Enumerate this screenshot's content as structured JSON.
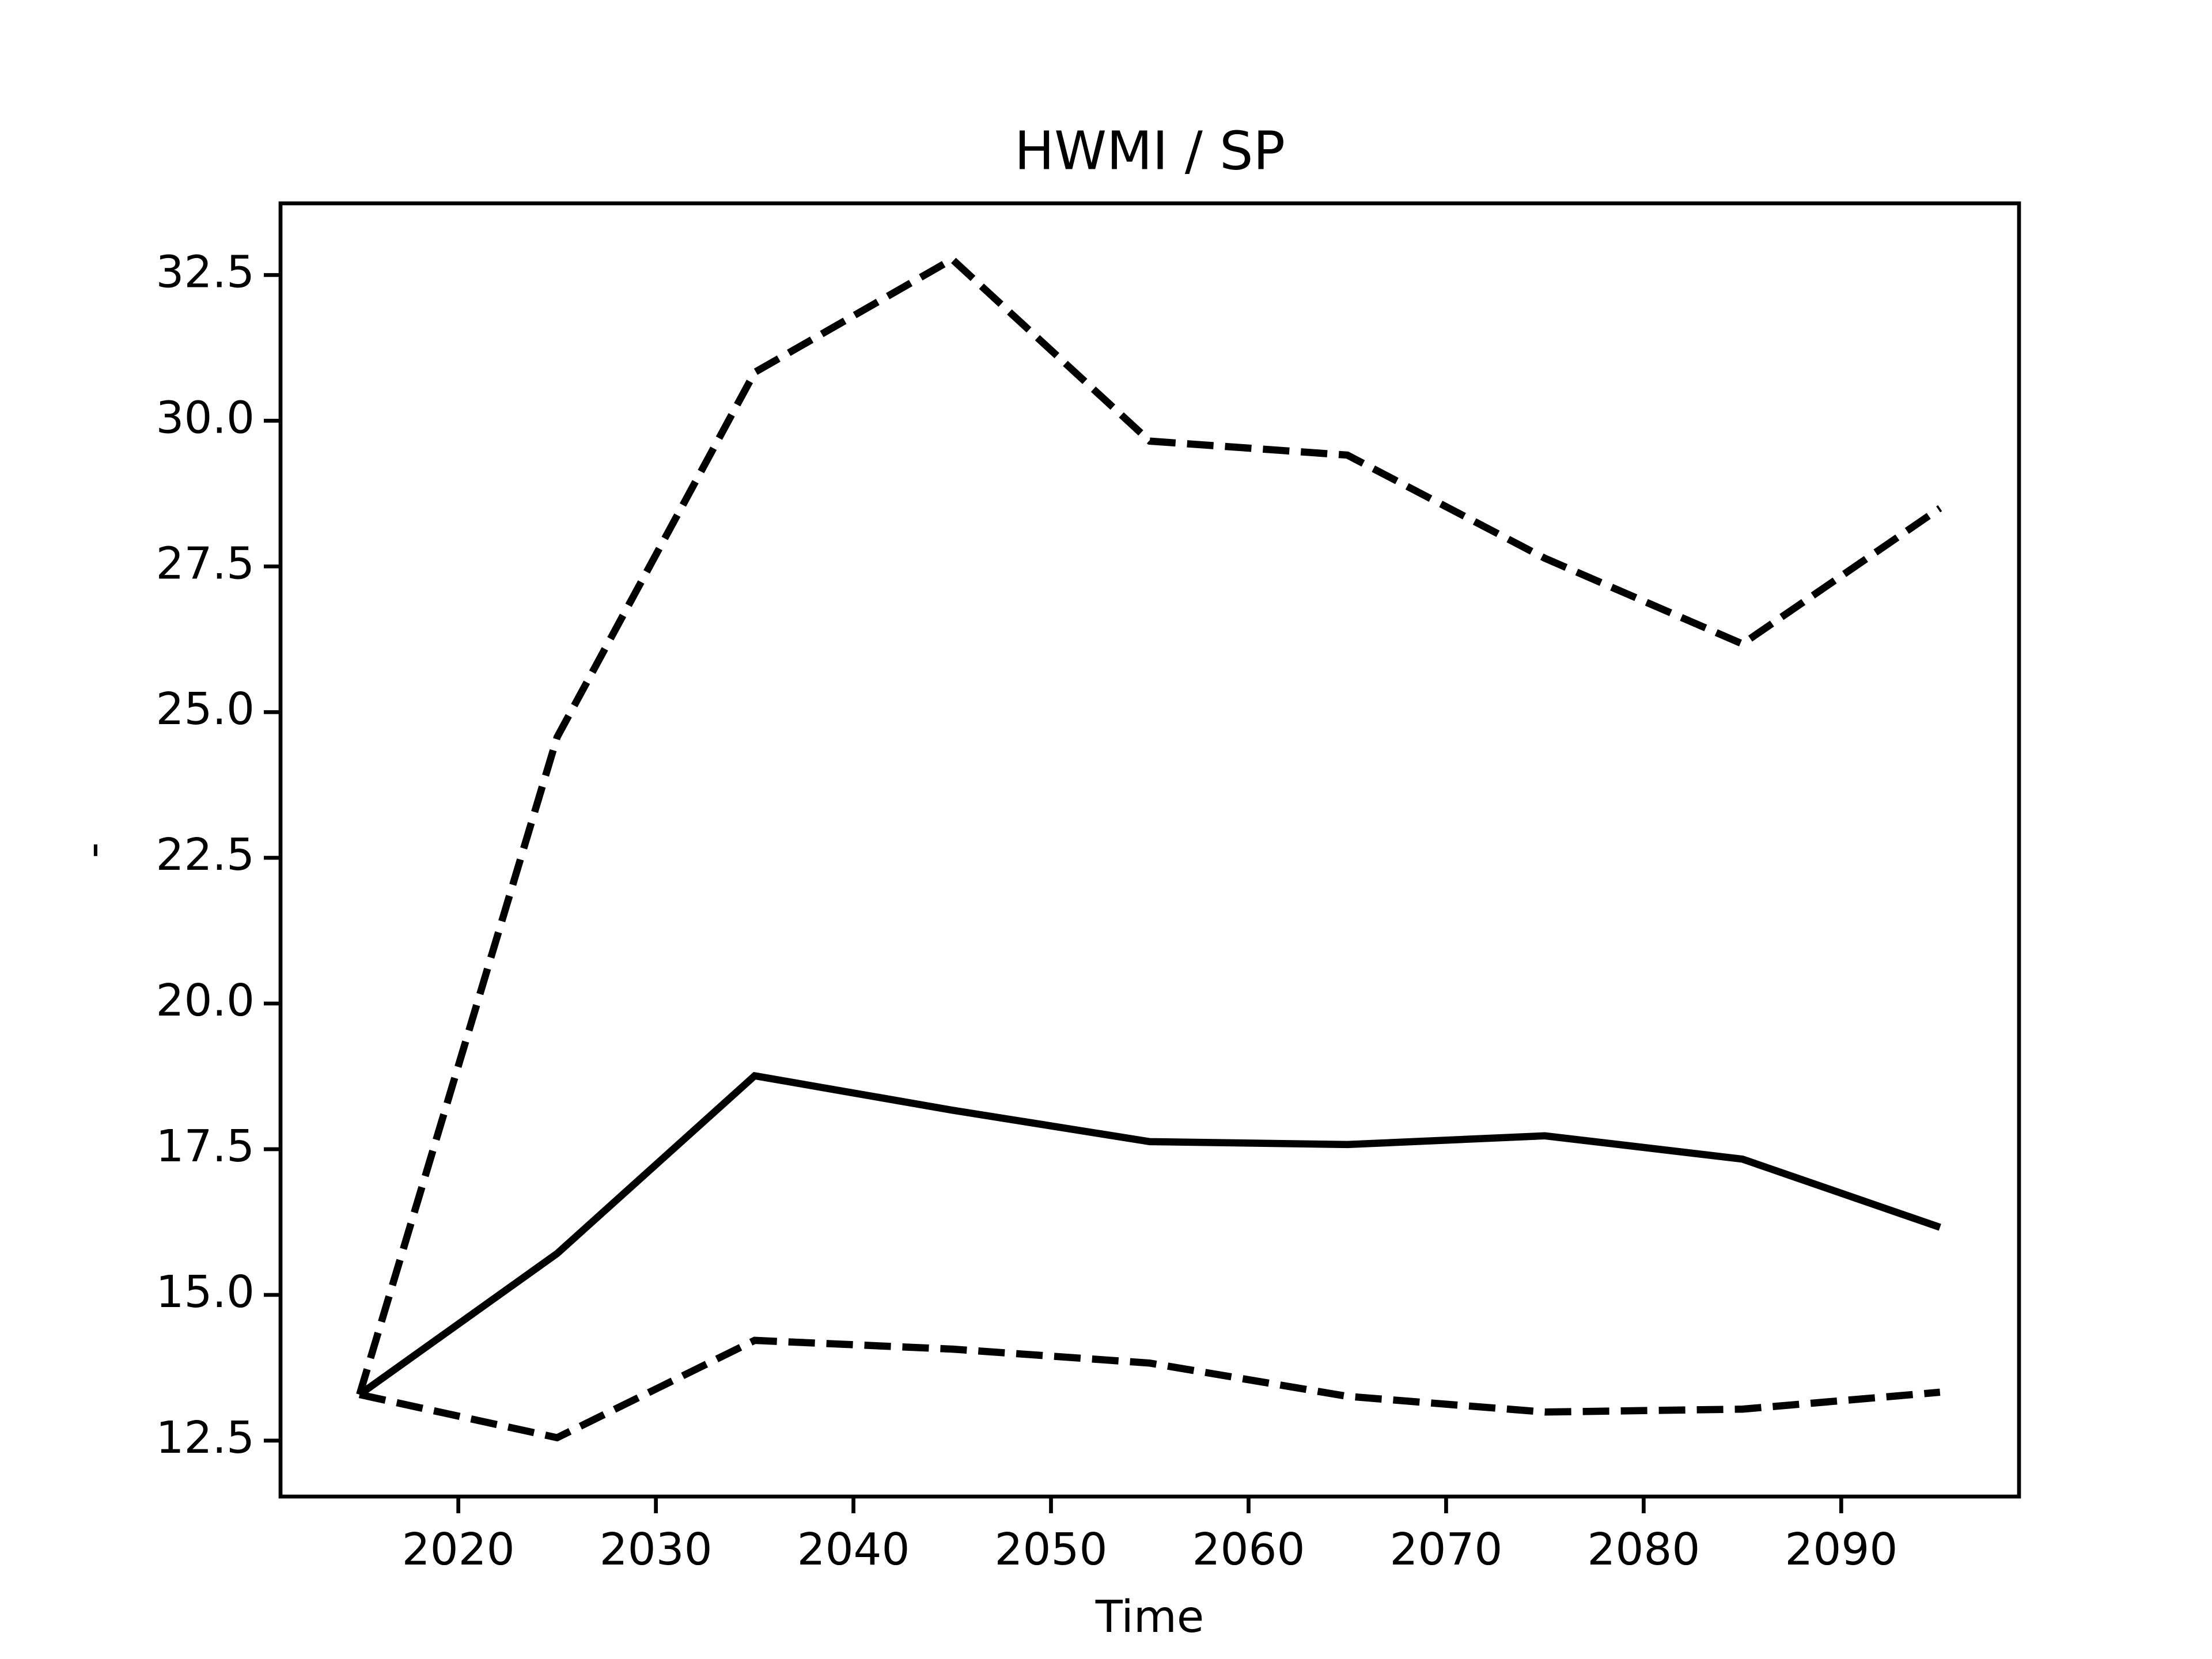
{
  "chart_data": {
    "type": "line",
    "title": "HWMI / SP",
    "x_label": "Time",
    "y_label": "-",
    "x": [
      2015,
      2025,
      2035,
      2045,
      2055,
      2065,
      2075,
      2085,
      2095
    ],
    "series": [
      {
        "color": "#000000",
        "dash": false,
        "values": [
          13.29,
          15.71,
          18.76,
          18.17,
          17.63,
          17.58,
          17.73,
          17.33,
          16.16
        ]
      },
      {
        "color": "#000000",
        "dash": true,
        "values": [
          13.29,
          24.57,
          30.83,
          32.77,
          29.65,
          29.41,
          27.64,
          26.17,
          28.5
        ]
      },
      {
        "color": "#000000",
        "dash": true,
        "values": [
          13.29,
          12.55,
          14.22,
          14.07,
          13.83,
          13.26,
          12.99,
          13.04,
          13.33
        ]
      }
    ],
    "xlim": [
      2011,
      2099
    ],
    "xticks": [
      2020,
      2030,
      2040,
      2050,
      2060,
      2070,
      2080,
      2090
    ],
    "ylim": [
      11.54,
      33.73
    ],
    "yticks": [
      12.5,
      {
        "value": 15,
        "label": "15.0"
      },
      17.5,
      {
        "value": 20,
        "label": "20.0"
      },
      22.5,
      {
        "value": 25,
        "label": "25.0"
      },
      27.5,
      {
        "value": 30,
        "label": "30.0"
      },
      32.5
    ],
    "grid": false
  }
}
